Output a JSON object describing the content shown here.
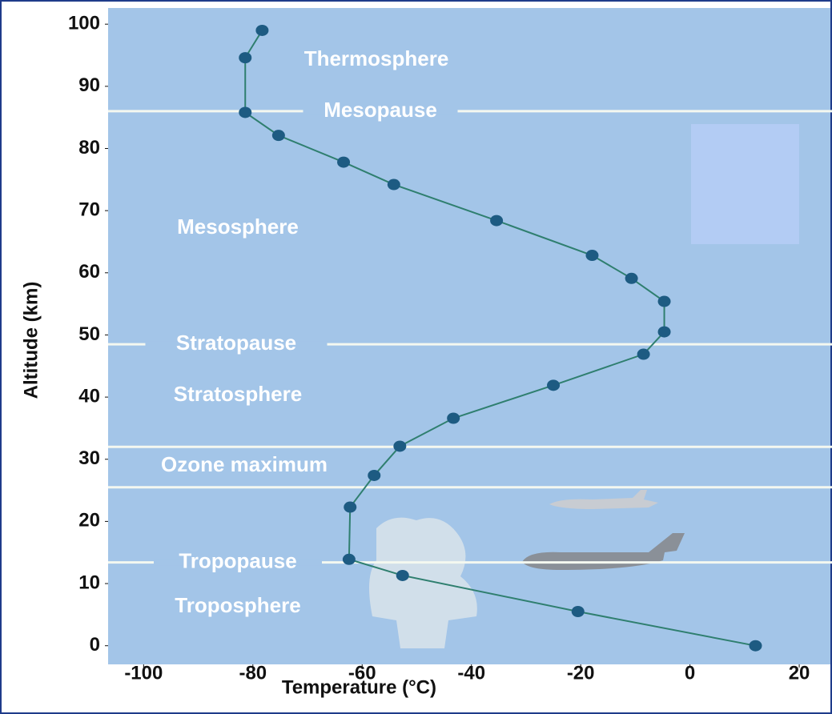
{
  "chart_data": {
    "type": "line",
    "x_label": "Temperature (°C)",
    "y_label": "Altitude (km)",
    "x": [
      12,
      -20.5,
      -52.6,
      -62.4,
      -62.2,
      -57.8,
      -53.1,
      -43.3,
      -25,
      -8.5,
      -4.7,
      -4.7,
      -10.7,
      -17.9,
      -35.4,
      -54.2,
      -63.4,
      -75.3,
      -81.4,
      -81.4,
      -78.3
    ],
    "series": [
      {
        "color": "#2f7f6f",
        "marker_color": "#1d5b82",
        "values": [
          0,
          5.5,
          11.3,
          13.9,
          22.3,
          27.4,
          32.1,
          36.6,
          41.9,
          46.9,
          50.5,
          55.4,
          59.1,
          62.8,
          68.4,
          74.2,
          77.8,
          82.1,
          85.8,
          94.6,
          99
        ]
      }
    ],
    "xlim": [
      -106.5,
      26
    ],
    "xticks": [
      -100,
      -80,
      -60,
      -40,
      -20,
      0,
      20
    ],
    "ylim": [
      -3,
      102.6
    ],
    "yticks": [
      0,
      10,
      20,
      30,
      40,
      50,
      60,
      70,
      80,
      90,
      100
    ],
    "hlines": [
      {
        "value": 86,
        "label": "Mesopause"
      },
      {
        "value": 48.5,
        "label": "Stratopause"
      },
      {
        "value": 32
      },
      {
        "value": 25.5
      },
      {
        "value": 13.4,
        "label": "Tropopause"
      }
    ],
    "annotations": [
      "Thermosphere",
      "Mesosphere",
      "Stratosphere",
      "Ozone maximum",
      "Troposphere"
    ]
  }
}
